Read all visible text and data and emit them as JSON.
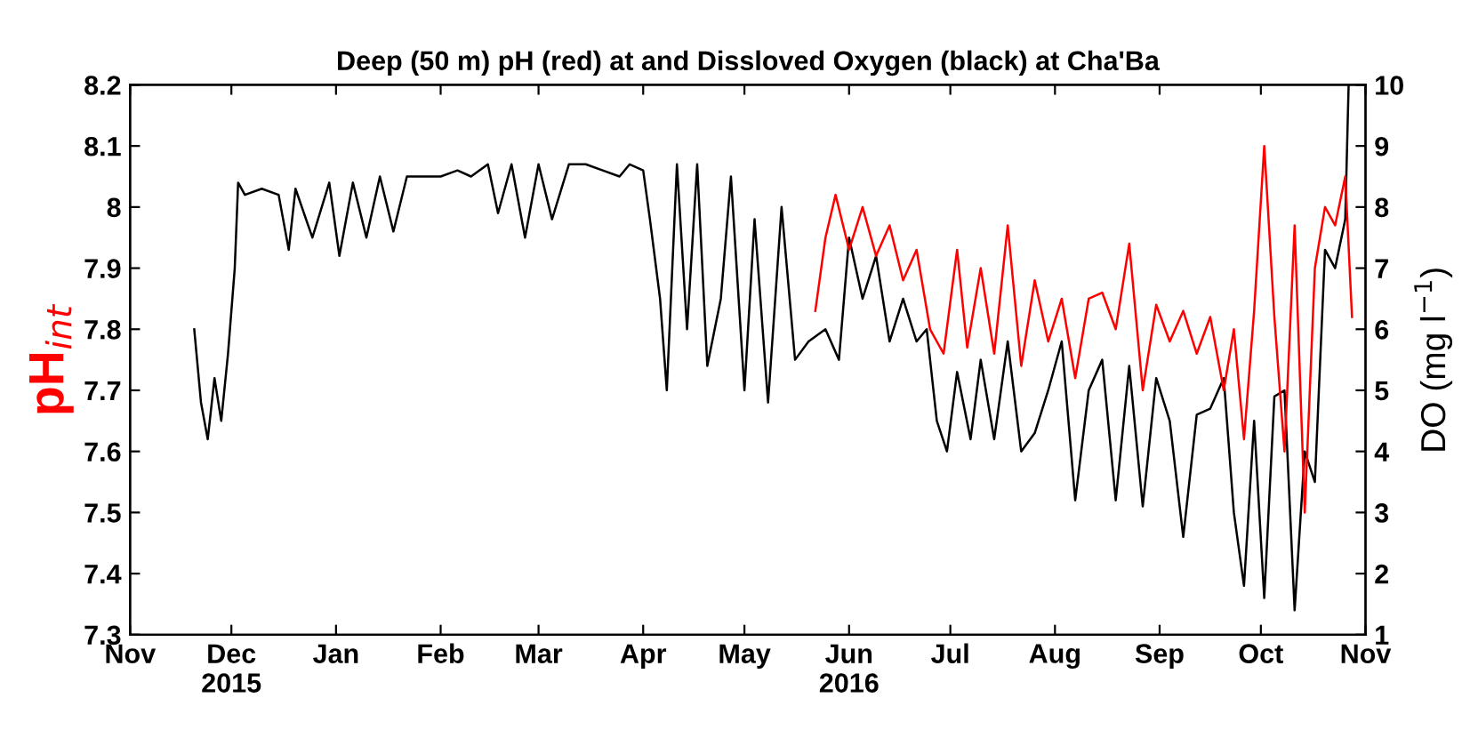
{
  "chart_data": {
    "type": "line",
    "title": "Deep (50 m) pH (red) at and Dissloved Oxygen (black) at Cha'Ba",
    "ylabel": "pH$_{int}$",
    "y2label": "DO (mg l$^{−1}$)",
    "xlim": [
      "2015-11-01",
      "2016-11-01"
    ],
    "xticks": [
      {
        "value": "2015-11-01",
        "label": "Nov"
      },
      {
        "value": "2015-12-01",
        "label": "Dec\n2015"
      },
      {
        "value": "2016-01-01",
        "label": "Jan"
      },
      {
        "value": "2016-02-01",
        "label": "Feb"
      },
      {
        "value": "2016-03-01",
        "label": "Mar"
      },
      {
        "value": "2016-04-01",
        "label": "Apr"
      },
      {
        "value": "2016-05-01",
        "label": "May"
      },
      {
        "value": "2016-06-01",
        "label": "Jun\n2016"
      },
      {
        "value": "2016-07-01",
        "label": "Jul"
      },
      {
        "value": "2016-08-01",
        "label": "Aug"
      },
      {
        "value": "2016-09-01",
        "label": "Sep"
      },
      {
        "value": "2016-10-01",
        "label": "Oct"
      },
      {
        "value": "2016-11-01",
        "label": "Nov"
      }
    ],
    "ylim": [
      7.3,
      8.2
    ],
    "yticks": [
      7.3,
      7.4,
      7.5,
      7.6,
      7.7,
      7.8,
      7.9,
      8,
      8.1,
      8.2
    ],
    "y2lim": [
      1,
      10
    ],
    "y2ticks": [
      1,
      2,
      3,
      4,
      5,
      6,
      7,
      8,
      9,
      10
    ],
    "grid": false,
    "legend": false,
    "marker": "none",
    "line_style": "solid",
    "series": [
      {
        "color": "#000000",
        "axis": "y2",
        "x": [
          "2015-11-20",
          "2015-11-22",
          "2015-11-24",
          "2015-11-26",
          "2015-11-28",
          "2015-11-30",
          "2015-12-02",
          "2015-12-03",
          "2015-12-05",
          "2015-12-10",
          "2015-12-15",
          "2015-12-18",
          "2015-12-20",
          "2015-12-25",
          "2015-12-30",
          "2016-01-02",
          "2016-01-06",
          "2016-01-10",
          "2016-01-14",
          "2016-01-18",
          "2016-01-22",
          "2016-01-26",
          "2016-02-01",
          "2016-02-06",
          "2016-02-10",
          "2016-02-15",
          "2016-02-18",
          "2016-02-22",
          "2016-02-26",
          "2016-03-01",
          "2016-03-05",
          "2016-03-10",
          "2016-03-15",
          "2016-03-20",
          "2016-03-25",
          "2016-03-28",
          "2016-04-01",
          "2016-04-03",
          "2016-04-06",
          "2016-04-08",
          "2016-04-11",
          "2016-04-14",
          "2016-04-17",
          "2016-04-20",
          "2016-04-24",
          "2016-04-27",
          "2016-05-01",
          "2016-05-04",
          "2016-05-08",
          "2016-05-12",
          "2016-05-16",
          "2016-05-20",
          "2016-05-25",
          "2016-05-29",
          "2016-06-01",
          "2016-06-05",
          "2016-06-09",
          "2016-06-13",
          "2016-06-17",
          "2016-06-21",
          "2016-06-24",
          "2016-06-27",
          "2016-06-30",
          "2016-07-03",
          "2016-07-07",
          "2016-07-10",
          "2016-07-14",
          "2016-07-18",
          "2016-07-22",
          "2016-07-26",
          "2016-07-30",
          "2016-08-03",
          "2016-08-07",
          "2016-08-11",
          "2016-08-15",
          "2016-08-19",
          "2016-08-23",
          "2016-08-27",
          "2016-08-31",
          "2016-09-04",
          "2016-09-08",
          "2016-09-12",
          "2016-09-16",
          "2016-09-20",
          "2016-09-23",
          "2016-09-26",
          "2016-09-29",
          "2016-10-02",
          "2016-10-05",
          "2016-10-08",
          "2016-10-11",
          "2016-10-14",
          "2016-10-17",
          "2016-10-20",
          "2016-10-23",
          "2016-10-26",
          "2016-10-27"
        ],
        "values": [
          6.0,
          4.8,
          4.2,
          5.2,
          4.5,
          5.6,
          7.0,
          8.4,
          8.2,
          8.3,
          8.2,
          7.3,
          8.3,
          7.5,
          8.4,
          7.2,
          8.4,
          7.5,
          8.5,
          7.6,
          8.5,
          8.5,
          8.5,
          8.6,
          8.5,
          8.7,
          7.9,
          8.7,
          7.5,
          8.7,
          7.8,
          8.7,
          8.7,
          8.6,
          8.5,
          8.7,
          8.6,
          7.8,
          6.5,
          5.0,
          8.7,
          6.0,
          8.7,
          5.4,
          6.5,
          8.5,
          5.0,
          7.8,
          4.8,
          8.0,
          5.5,
          5.8,
          6.0,
          5.5,
          7.5,
          6.5,
          7.2,
          5.8,
          6.5,
          5.8,
          6.0,
          4.5,
          4.0,
          5.3,
          4.2,
          5.5,
          4.2,
          5.8,
          4.0,
          4.3,
          5.0,
          5.8,
          3.2,
          5.0,
          5.5,
          3.2,
          5.4,
          3.1,
          5.2,
          4.5,
          2.6,
          4.6,
          4.7,
          5.2,
          3.0,
          1.8,
          4.5,
          1.6,
          4.9,
          5.0,
          1.4,
          4.0,
          3.5,
          7.3,
          7.0,
          7.8,
          10.0
        ]
      },
      {
        "color": "#ff0000",
        "axis": "y",
        "x": [
          "2016-05-22",
          "2016-05-25",
          "2016-05-28",
          "2016-06-01",
          "2016-06-05",
          "2016-06-09",
          "2016-06-13",
          "2016-06-17",
          "2016-06-21",
          "2016-06-25",
          "2016-06-29",
          "2016-07-03",
          "2016-07-06",
          "2016-07-10",
          "2016-07-14",
          "2016-07-18",
          "2016-07-22",
          "2016-07-26",
          "2016-07-30",
          "2016-08-03",
          "2016-08-07",
          "2016-08-11",
          "2016-08-15",
          "2016-08-19",
          "2016-08-23",
          "2016-08-27",
          "2016-08-31",
          "2016-09-04",
          "2016-09-08",
          "2016-09-12",
          "2016-09-16",
          "2016-09-20",
          "2016-09-23",
          "2016-09-26",
          "2016-09-29",
          "2016-10-02",
          "2016-10-05",
          "2016-10-08",
          "2016-10-11",
          "2016-10-14",
          "2016-10-17",
          "2016-10-20",
          "2016-10-23",
          "2016-10-26",
          "2016-10-28"
        ],
        "values": [
          7.83,
          7.95,
          8.02,
          7.93,
          8.0,
          7.92,
          7.97,
          7.88,
          7.93,
          7.8,
          7.76,
          7.93,
          7.77,
          7.9,
          7.76,
          7.97,
          7.74,
          7.88,
          7.78,
          7.85,
          7.72,
          7.85,
          7.86,
          7.8,
          7.94,
          7.7,
          7.84,
          7.78,
          7.83,
          7.76,
          7.82,
          7.7,
          7.8,
          7.62,
          7.83,
          8.1,
          7.82,
          7.6,
          7.97,
          7.5,
          7.9,
          8.0,
          7.97,
          8.05,
          7.82
        ]
      }
    ]
  }
}
